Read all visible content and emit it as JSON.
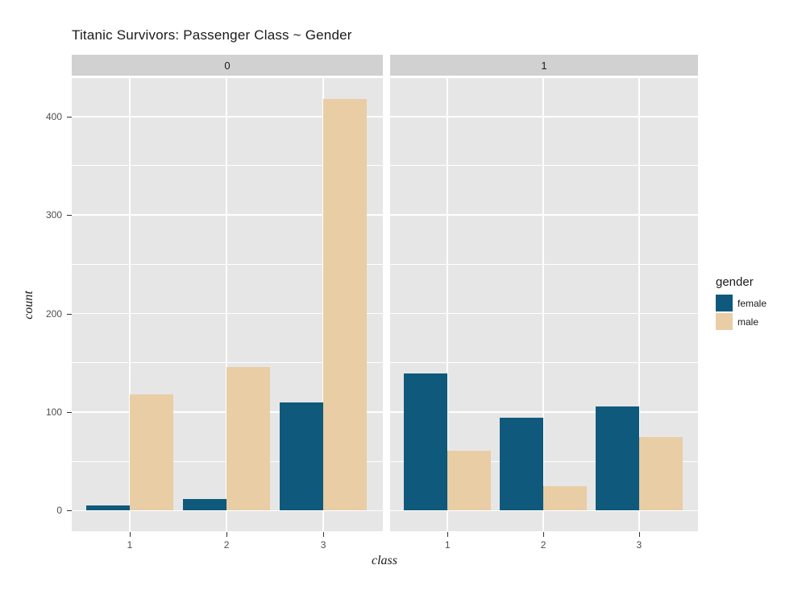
{
  "title": "Titanic Survivors: Passenger Class ~ Gender",
  "chart_data": {
    "type": "bar",
    "title": "Titanic Survivors: Passenger Class ~ Gender",
    "xlabel": "class",
    "ylabel": "count",
    "categories": [
      "1",
      "2",
      "3"
    ],
    "facets": [
      {
        "label": "0",
        "series": [
          {
            "name": "female",
            "values": [
              5,
              12,
              110
            ]
          },
          {
            "name": "male",
            "values": [
              118,
              146,
              418
            ]
          }
        ]
      },
      {
        "label": "1",
        "series": [
          {
            "name": "female",
            "values": [
              139,
              94,
              106
            ]
          },
          {
            "name": "male",
            "values": [
              61,
              25,
              75
            ]
          }
        ]
      }
    ],
    "legend": {
      "title": "gender",
      "position": "right",
      "entries": [
        {
          "label": "female",
          "color": "#0F5A7C"
        },
        {
          "label": "male",
          "color": "#E9CDA5"
        }
      ]
    },
    "y_ticks": [
      0,
      100,
      200,
      300,
      400
    ],
    "y_minor_ticks": [
      50,
      150,
      250,
      350
    ],
    "ylim": [
      0,
      418
    ],
    "grid": "white-major-and-minor-horizontal, white-major-vertical, on gray panel",
    "colors": {
      "female": "#0F5A7C",
      "male": "#E9CDA5",
      "panel_background": "#E6E6E6",
      "strip_background": "#D1D1D1",
      "gridline": "#FFFFFF",
      "tick_label": "#4D4D4D",
      "text": "#1A1A1A"
    }
  }
}
